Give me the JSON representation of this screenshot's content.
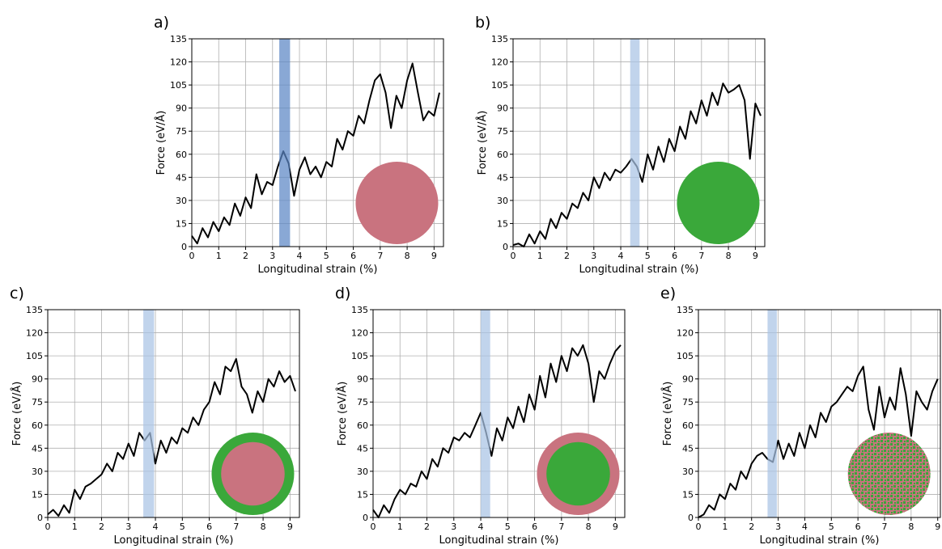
{
  "chart_data": [
    {
      "type": "line",
      "label": "a)",
      "xlabel": "Longitudinal strain (%)",
      "ylabel": "Force (eV/Å)",
      "color": "#000000",
      "x": [
        0,
        0.2,
        0.4,
        0.6,
        0.8,
        1.0,
        1.2,
        1.4,
        1.6,
        1.8,
        2.0,
        2.2,
        2.4,
        2.6,
        2.8,
        3.0,
        3.2,
        3.4,
        3.6,
        3.8,
        4.0,
        4.2,
        4.4,
        4.6,
        4.8,
        5.0,
        5.2,
        5.4,
        5.6,
        5.8,
        6.0,
        6.2,
        6.4,
        6.6,
        6.8,
        7.0,
        7.2,
        7.4,
        7.6,
        7.8,
        8.0,
        8.2,
        8.4,
        8.6,
        8.8,
        9.0,
        9.2
      ],
      "values": [
        7,
        2,
        12,
        6,
        16,
        10,
        19,
        14,
        28,
        20,
        32,
        25,
        47,
        34,
        42,
        40,
        52,
        62,
        54,
        33,
        50,
        58,
        47,
        52,
        45,
        55,
        52,
        70,
        63,
        75,
        72,
        85,
        80,
        95,
        108,
        112,
        100,
        77,
        98,
        90,
        108,
        119,
        100,
        82,
        88,
        85,
        100
      ],
      "xlim": [
        0,
        9.35
      ],
      "ylim": [
        0,
        135
      ],
      "xticks": [
        0,
        1,
        2,
        3,
        4,
        5,
        6,
        7,
        8,
        9
      ],
      "yticks": [
        0,
        15,
        30,
        45,
        60,
        75,
        90,
        105,
        120,
        135
      ],
      "grid": true,
      "highlight": {
        "xlim": [
          3.25,
          3.65
        ],
        "color": "#5b87c5"
      },
      "inset": {
        "outer": "#c9737f"
      }
    },
    {
      "type": "line",
      "label": "b)",
      "xlabel": "Longitudinal strain (%)",
      "ylabel": "Force (eV/Å)",
      "color": "#000000",
      "x": [
        0,
        0.2,
        0.4,
        0.6,
        0.8,
        1.0,
        1.2,
        1.4,
        1.6,
        1.8,
        2.0,
        2.2,
        2.4,
        2.6,
        2.8,
        3.0,
        3.2,
        3.4,
        3.6,
        3.8,
        4.0,
        4.2,
        4.4,
        4.6,
        4.8,
        5.0,
        5.2,
        5.4,
        5.6,
        5.8,
        6.0,
        6.2,
        6.4,
        6.6,
        6.8,
        7.0,
        7.2,
        7.4,
        7.6,
        7.8,
        8.0,
        8.2,
        8.4,
        8.6,
        8.8,
        9.0,
        9.2
      ],
      "values": [
        1,
        2,
        0,
        8,
        2,
        10,
        5,
        18,
        12,
        22,
        18,
        28,
        25,
        35,
        30,
        45,
        38,
        48,
        43,
        50,
        48,
        52,
        57,
        52,
        42,
        60,
        50,
        65,
        55,
        70,
        62,
        78,
        70,
        88,
        80,
        95,
        85,
        100,
        92,
        106,
        100,
        102,
        105,
        95,
        57,
        93,
        85
      ],
      "xlim": [
        0,
        9.35
      ],
      "ylim": [
        0,
        135
      ],
      "xticks": [
        0,
        1,
        2,
        3,
        4,
        5,
        6,
        7,
        8,
        9
      ],
      "yticks": [
        0,
        15,
        30,
        45,
        60,
        75,
        90,
        105,
        120,
        135
      ],
      "grid": true,
      "highlight": {
        "xlim": [
          4.35,
          4.7
        ],
        "color": "#a9c4e4"
      },
      "inset": {
        "outer": "#3aa83a"
      }
    },
    {
      "type": "line",
      "label": "c)",
      "xlabel": "Longitudinal strain (%)",
      "ylabel": "Force (eV/Å)",
      "color": "#000000",
      "x": [
        0,
        0.2,
        0.4,
        0.6,
        0.8,
        1.0,
        1.2,
        1.4,
        1.6,
        1.8,
        2.0,
        2.2,
        2.4,
        2.6,
        2.8,
        3.0,
        3.2,
        3.4,
        3.6,
        3.8,
        4.0,
        4.2,
        4.4,
        4.6,
        4.8,
        5.0,
        5.2,
        5.4,
        5.6,
        5.8,
        6.0,
        6.2,
        6.4,
        6.6,
        6.8,
        7.0,
        7.2,
        7.4,
        7.6,
        7.8,
        8.0,
        8.2,
        8.4,
        8.6,
        8.8,
        9.0,
        9.2
      ],
      "values": [
        2,
        5,
        1,
        8,
        3,
        18,
        12,
        20,
        22,
        25,
        28,
        35,
        30,
        42,
        38,
        48,
        40,
        55,
        50,
        55,
        35,
        50,
        42,
        52,
        48,
        58,
        55,
        65,
        60,
        70,
        75,
        88,
        80,
        98,
        95,
        103,
        85,
        80,
        68,
        82,
        75,
        90,
        85,
        95,
        88,
        92,
        82
      ],
      "xlim": [
        0,
        9.35
      ],
      "ylim": [
        0,
        135
      ],
      "xticks": [
        0,
        1,
        2,
        3,
        4,
        5,
        6,
        7,
        8,
        9
      ],
      "yticks": [
        0,
        15,
        30,
        45,
        60,
        75,
        90,
        105,
        120,
        135
      ],
      "grid": true,
      "highlight": {
        "xlim": [
          3.55,
          3.95
        ],
        "color": "#a9c4e4"
      },
      "inset": {
        "outer": "#3aa83a",
        "inner": "#c9737f"
      }
    },
    {
      "type": "line",
      "label": "d)",
      "xlabel": "Longitudinal strain (%)",
      "ylabel": "Force (eV/Å)",
      "color": "#000000",
      "x": [
        0,
        0.2,
        0.4,
        0.6,
        0.8,
        1.0,
        1.2,
        1.4,
        1.6,
        1.8,
        2.0,
        2.2,
        2.4,
        2.6,
        2.8,
        3.0,
        3.2,
        3.4,
        3.6,
        3.8,
        4.0,
        4.2,
        4.4,
        4.6,
        4.8,
        5.0,
        5.2,
        5.4,
        5.6,
        5.8,
        6.0,
        6.2,
        6.4,
        6.6,
        6.8,
        7.0,
        7.2,
        7.4,
        7.6,
        7.8,
        8.0,
        8.2,
        8.4,
        8.6,
        8.8,
        9.0,
        9.2
      ],
      "values": [
        5,
        0,
        8,
        3,
        12,
        18,
        15,
        22,
        20,
        30,
        25,
        38,
        33,
        45,
        42,
        52,
        50,
        55,
        52,
        60,
        68,
        55,
        40,
        58,
        50,
        65,
        58,
        72,
        62,
        80,
        70,
        92,
        78,
        100,
        88,
        105,
        95,
        110,
        105,
        112,
        100,
        75,
        95,
        90,
        100,
        108,
        112
      ],
      "xlim": [
        0,
        9.35
      ],
      "ylim": [
        0,
        135
      ],
      "xticks": [
        0,
        1,
        2,
        3,
        4,
        5,
        6,
        7,
        8,
        9
      ],
      "yticks": [
        0,
        15,
        30,
        45,
        60,
        75,
        90,
        105,
        120,
        135
      ],
      "grid": true,
      "highlight": {
        "xlim": [
          4.0,
          4.35
        ],
        "color": "#a9c4e4"
      },
      "inset": {
        "outer": "#c9737f",
        "inner": "#3aa83a"
      }
    },
    {
      "type": "line",
      "label": "e)",
      "xlabel": "Longitudinal strain (%)",
      "ylabel": "Force (eV/Å)",
      "color": "#000000",
      "x": [
        0,
        0.2,
        0.4,
        0.6,
        0.8,
        1.0,
        1.2,
        1.4,
        1.6,
        1.8,
        2.0,
        2.2,
        2.4,
        2.6,
        2.8,
        3.0,
        3.2,
        3.4,
        3.6,
        3.8,
        4.0,
        4.2,
        4.4,
        4.6,
        4.8,
        5.0,
        5.2,
        5.4,
        5.6,
        5.8,
        6.0,
        6.2,
        6.4,
        6.6,
        6.8,
        7.0,
        7.2,
        7.4,
        7.6,
        7.8,
        8.0,
        8.2,
        8.4,
        8.6,
        8.8,
        9.0
      ],
      "values": [
        0,
        2,
        8,
        5,
        15,
        12,
        22,
        18,
        30,
        25,
        35,
        40,
        42,
        38,
        36,
        50,
        38,
        48,
        40,
        55,
        45,
        60,
        52,
        68,
        62,
        72,
        75,
        80,
        85,
        82,
        92,
        98,
        70,
        57,
        85,
        65,
        78,
        70,
        97,
        80,
        53,
        82,
        75,
        70,
        82,
        90
      ],
      "xlim": [
        0,
        9.1
      ],
      "ylim": [
        0,
        135
      ],
      "xticks": [
        0,
        1,
        2,
        3,
        4,
        5,
        6,
        7,
        8,
        9
      ],
      "yticks": [
        0,
        15,
        30,
        45,
        60,
        75,
        90,
        105,
        120,
        135
      ],
      "grid": true,
      "highlight": {
        "xlim": [
          2.6,
          2.95
        ],
        "color": "#a9c4e4"
      },
      "inset": {
        "outer": "#c9737f",
        "mixed": "#3aa83a"
      }
    }
  ]
}
